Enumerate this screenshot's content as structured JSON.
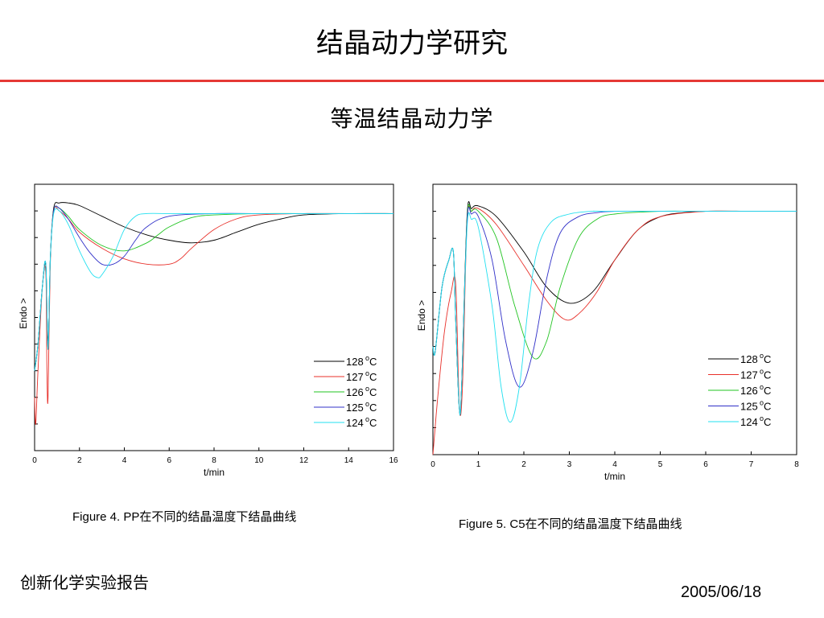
{
  "slide": {
    "title": "结晶动力学研究",
    "subtitle": "等温结晶动力学",
    "footer_left": "创新化学实验报告",
    "footer_right": "2005/06/18",
    "rule_color": "#e53935"
  },
  "chart_data": [
    {
      "type": "line",
      "caption": "Figure 4. PP在不同的结晶温度下结晶曲线",
      "xlabel": "t/min",
      "ylabel": "Endo >",
      "xlim": [
        0,
        16
      ],
      "ylim": [
        0,
        100
      ],
      "xticks": [
        "0",
        "2",
        "4",
        "6",
        "8",
        "10",
        "12",
        "14",
        "16"
      ],
      "grid": false,
      "legend": "bottom-right",
      "series": [
        {
          "name": "128",
          "unit": "oC",
          "color": "#000000",
          "x": [
            0,
            0.15,
            0.35,
            0.5,
            0.55,
            0.62,
            0.7,
            0.85,
            1.1,
            1.5,
            2,
            3,
            4,
            5,
            6,
            7,
            8,
            9,
            10,
            11,
            12,
            14,
            16
          ],
          "y": [
            30,
            40,
            62,
            70,
            52,
            42,
            72,
            91,
            93,
            93,
            92,
            88,
            84,
            81,
            79,
            78,
            79,
            82,
            85,
            87,
            88.5,
            89,
            89
          ]
        },
        {
          "name": "127",
          "unit": "oC",
          "color": "#e8302a",
          "x": [
            0,
            0.05,
            0.15,
            0.35,
            0.5,
            0.55,
            0.6,
            0.7,
            0.85,
            1.1,
            1.5,
            2,
            3,
            4,
            5,
            6,
            6.5,
            7,
            8,
            9,
            10,
            12,
            14,
            16
          ],
          "y": [
            20,
            10,
            30,
            62,
            67,
            30,
            20,
            70,
            90,
            90,
            87,
            82,
            76,
            72,
            70,
            70,
            72,
            76,
            83,
            87,
            88.5,
            89,
            89,
            89
          ]
        },
        {
          "name": "126",
          "unit": "oC",
          "color": "#22c422",
          "x": [
            0,
            0.15,
            0.35,
            0.5,
            0.6,
            0.7,
            0.85,
            1.1,
            1.5,
            2,
            3,
            4,
            5,
            5.5,
            6,
            7,
            8,
            10,
            12,
            14,
            16
          ],
          "y": [
            30,
            40,
            62,
            70,
            38,
            72,
            90,
            91,
            88,
            83,
            77,
            75,
            78,
            81,
            84,
            87.5,
            88.5,
            89,
            89,
            89,
            89
          ]
        },
        {
          "name": "125",
          "unit": "oC",
          "color": "#3030c8",
          "x": [
            0,
            0.15,
            0.35,
            0.5,
            0.6,
            0.7,
            0.85,
            1.1,
            1.5,
            2,
            2.5,
            3,
            3.5,
            4,
            4.5,
            5,
            6,
            8,
            10,
            12,
            14,
            16
          ],
          "y": [
            30,
            40,
            62,
            70,
            38,
            72,
            90,
            91,
            87,
            80,
            74,
            70,
            70,
            73,
            79,
            84,
            88,
            89,
            89,
            89,
            89,
            89
          ]
        },
        {
          "name": "124",
          "unit": "oC",
          "color": "#22e0f0",
          "x": [
            0,
            0.15,
            0.35,
            0.5,
            0.6,
            0.7,
            0.85,
            1.1,
            1.5,
            2,
            2.5,
            2.8,
            3,
            3.5,
            4,
            4.5,
            5,
            6,
            8,
            10,
            12,
            14,
            16
          ],
          "y": [
            30,
            40,
            62,
            70,
            38,
            72,
            89,
            90,
            85,
            75,
            67,
            65,
            66,
            73,
            83,
            88,
            89,
            89,
            89,
            89,
            89,
            89,
            89
          ]
        }
      ]
    },
    {
      "type": "line",
      "caption": "Figure 5.  C5在不同的结晶温度下结晶曲线",
      "xlabel": "t/min",
      "ylabel": "Endo >",
      "xlim": [
        0,
        8
      ],
      "ylim": [
        0,
        100
      ],
      "xticks": [
        "0",
        "1",
        "2",
        "3",
        "4",
        "5",
        "6",
        "7",
        "8"
      ],
      "grid": false,
      "legend": "bottom-right",
      "series": [
        {
          "name": "128",
          "unit": "oC",
          "color": "#000000",
          "x": [
            0,
            0.05,
            0.2,
            0.35,
            0.45,
            0.5,
            0.58,
            0.63,
            0.75,
            0.85,
            1,
            1.4,
            2,
            2.5,
            3,
            3.5,
            4,
            4.5,
            5,
            5.5,
            6,
            7,
            8
          ],
          "y": [
            40,
            38,
            62,
            72,
            75,
            50,
            17,
            25,
            88,
            91,
            92,
            88,
            75,
            62,
            56,
            60,
            72,
            83,
            88,
            89.5,
            90,
            90,
            90
          ]
        },
        {
          "name": "127",
          "unit": "oC",
          "color": "#e8302a",
          "x": [
            0,
            0.1,
            0.25,
            0.4,
            0.5,
            0.58,
            0.65,
            0.75,
            0.85,
            1,
            1.4,
            2,
            2.5,
            2.9,
            3.2,
            3.6,
            4,
            4.5,
            5,
            6,
            7,
            8
          ],
          "y": [
            0,
            20,
            45,
            60,
            63,
            18,
            25,
            86,
            90,
            91,
            85,
            70,
            57,
            50,
            52,
            60,
            72,
            83,
            88,
            90,
            90,
            90
          ]
        },
        {
          "name": "126",
          "unit": "oC",
          "color": "#22c422",
          "x": [
            0,
            0.05,
            0.2,
            0.35,
            0.45,
            0.5,
            0.58,
            0.63,
            0.75,
            0.85,
            1,
            1.4,
            1.8,
            2.2,
            2.5,
            2.8,
            3.2,
            3.6,
            4,
            5,
            6,
            8
          ],
          "y": [
            40,
            38,
            62,
            72,
            75,
            50,
            17,
            25,
            87,
            90,
            90,
            80,
            55,
            36,
            42,
            62,
            80,
            87,
            89,
            90,
            90,
            90
          ]
        },
        {
          "name": "125",
          "unit": "oC",
          "color": "#3030c8",
          "x": [
            0,
            0.05,
            0.2,
            0.35,
            0.45,
            0.5,
            0.58,
            0.63,
            0.75,
            0.85,
            1,
            1.3,
            1.6,
            1.9,
            2.2,
            2.5,
            2.8,
            3.2,
            3.6,
            4,
            5,
            8
          ],
          "y": [
            40,
            38,
            62,
            72,
            75,
            50,
            17,
            25,
            86,
            89,
            88,
            72,
            42,
            25,
            38,
            65,
            82,
            88,
            89.5,
            90,
            90,
            90
          ]
        },
        {
          "name": "124",
          "unit": "oC",
          "color": "#22e0f0",
          "x": [
            0,
            0.05,
            0.2,
            0.35,
            0.45,
            0.5,
            0.58,
            0.63,
            0.75,
            0.85,
            1,
            1.3,
            1.5,
            1.7,
            1.9,
            2.1,
            2.3,
            2.6,
            3,
            3.5,
            4,
            8
          ],
          "y": [
            40,
            38,
            62,
            72,
            75,
            50,
            17,
            25,
            84,
            87,
            84,
            55,
            25,
            12,
            25,
            55,
            76,
            86,
            89,
            90,
            90,
            90
          ]
        }
      ]
    }
  ]
}
